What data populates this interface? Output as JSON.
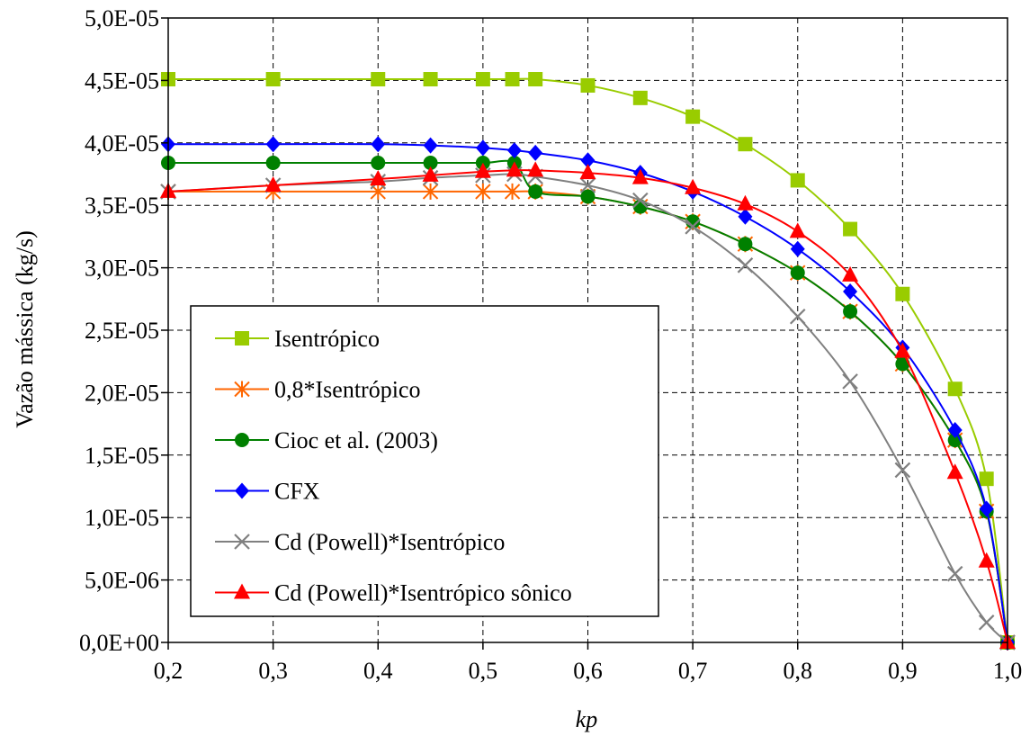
{
  "chart_data": {
    "type": "line",
    "xlabel": "kp",
    "ylabel": "Vazão mássica (kg/s)",
    "xlim": [
      0.2,
      1.0
    ],
    "ylim": [
      0,
      5e-05
    ],
    "xticks": [
      0.2,
      0.3,
      0.4,
      0.5,
      0.6,
      0.7,
      0.8,
      0.9,
      1.0
    ],
    "xtick_labels": [
      "0,2",
      "0,3",
      "0,4",
      "0,5",
      "0,6",
      "0,7",
      "0,8",
      "0,9",
      "1,0"
    ],
    "yticks": [
      0,
      5e-06,
      1e-05,
      1.5e-05,
      2e-05,
      2.5e-05,
      3e-05,
      3.5e-05,
      4e-05,
      4.5e-05,
      5e-05
    ],
    "ytick_labels": [
      "0,0E+00",
      "5,0E-06",
      "1,0E-05",
      "1,5E-05",
      "2,0E-05",
      "2,5E-05",
      "3,0E-05",
      "3,5E-05",
      "4,0E-05",
      "4,5E-05",
      "5,0E-05"
    ],
    "grid": true,
    "legend_position": "lower-left",
    "series": [
      {
        "name": "Isentrópico",
        "color": "#99cc00",
        "marker": "square",
        "x": [
          0.2,
          0.3,
          0.4,
          0.45,
          0.5,
          0.528,
          0.55,
          0.6,
          0.65,
          0.7,
          0.75,
          0.8,
          0.85,
          0.9,
          0.95,
          0.98,
          1.0
        ],
        "y": [
          4.51e-05,
          4.51e-05,
          4.51e-05,
          4.51e-05,
          4.51e-05,
          4.51e-05,
          4.51e-05,
          4.46e-05,
          4.36e-05,
          4.21e-05,
          3.99e-05,
          3.7e-05,
          3.31e-05,
          2.79e-05,
          2.03e-05,
          1.31e-05,
          0.0
        ]
      },
      {
        "name": "0,8*Isentrópico",
        "color": "#ff6600",
        "marker": "asterisk",
        "x": [
          0.2,
          0.3,
          0.4,
          0.45,
          0.5,
          0.528,
          0.55,
          0.6,
          0.65,
          0.7,
          0.75,
          0.8,
          0.85,
          0.9,
          0.95,
          0.98,
          1.0
        ],
        "y": [
          3.61e-05,
          3.61e-05,
          3.61e-05,
          3.61e-05,
          3.61e-05,
          3.61e-05,
          3.61e-05,
          3.57e-05,
          3.49e-05,
          3.37e-05,
          3.19e-05,
          2.96e-05,
          2.65e-05,
          2.23e-05,
          1.62e-05,
          1.05e-05,
          0.0
        ]
      },
      {
        "name": "Cioc et al. (2003)",
        "color": "#008000",
        "marker": "circle",
        "x": [
          0.2,
          0.3,
          0.4,
          0.45,
          0.5,
          0.53,
          0.55,
          0.6,
          0.65,
          0.7,
          0.75,
          0.8,
          0.85,
          0.9,
          0.95,
          0.98,
          1.0
        ],
        "y": [
          3.84e-05,
          3.84e-05,
          3.84e-05,
          3.84e-05,
          3.84e-05,
          3.84e-05,
          3.61e-05,
          3.57e-05,
          3.49e-05,
          3.37e-05,
          3.19e-05,
          2.96e-05,
          2.65e-05,
          2.23e-05,
          1.62e-05,
          1.05e-05,
          0.0
        ]
      },
      {
        "name": "CFX",
        "color": "#0000ff",
        "marker": "diamond",
        "x": [
          0.2,
          0.3,
          0.4,
          0.45,
          0.5,
          0.53,
          0.55,
          0.6,
          0.65,
          0.7,
          0.75,
          0.8,
          0.85,
          0.9,
          0.95,
          0.98,
          1.0
        ],
        "y": [
          3.99e-05,
          3.99e-05,
          3.99e-05,
          3.98e-05,
          3.96e-05,
          3.94e-05,
          3.92e-05,
          3.86e-05,
          3.76e-05,
          3.61e-05,
          3.41e-05,
          3.15e-05,
          2.81e-05,
          2.36e-05,
          1.7e-05,
          1.07e-05,
          0.0
        ]
      },
      {
        "name": "Cd (Powell)*Isentrópico",
        "color": "#808080",
        "marker": "x",
        "x": [
          0.2,
          0.3,
          0.4,
          0.45,
          0.5,
          0.53,
          0.55,
          0.6,
          0.65,
          0.7,
          0.75,
          0.8,
          0.85,
          0.9,
          0.95,
          0.98,
          1.0
        ],
        "y": [
          3.61e-05,
          3.66e-05,
          3.69e-05,
          3.72e-05,
          3.74e-05,
          3.75e-05,
          3.73e-05,
          3.66e-05,
          3.54e-05,
          3.33e-05,
          3.02e-05,
          2.61e-05,
          2.09e-05,
          1.38e-05,
          5.5e-06,
          1.6e-06,
          0.0
        ]
      },
      {
        "name": "Cd (Powell)*Isentrópico sônico",
        "color": "#ff0000",
        "marker": "triangle",
        "x": [
          0.2,
          0.3,
          0.4,
          0.45,
          0.5,
          0.53,
          0.55,
          0.6,
          0.65,
          0.7,
          0.75,
          0.8,
          0.85,
          0.9,
          0.95,
          0.98,
          1.0
        ],
        "y": [
          3.61e-05,
          3.66e-05,
          3.71e-05,
          3.74e-05,
          3.77e-05,
          3.78e-05,
          3.78e-05,
          3.76e-05,
          3.72e-05,
          3.64e-05,
          3.51e-05,
          3.29e-05,
          2.94e-05,
          2.33e-05,
          1.36e-05,
          6.5e-06,
          0.0
        ]
      }
    ]
  }
}
